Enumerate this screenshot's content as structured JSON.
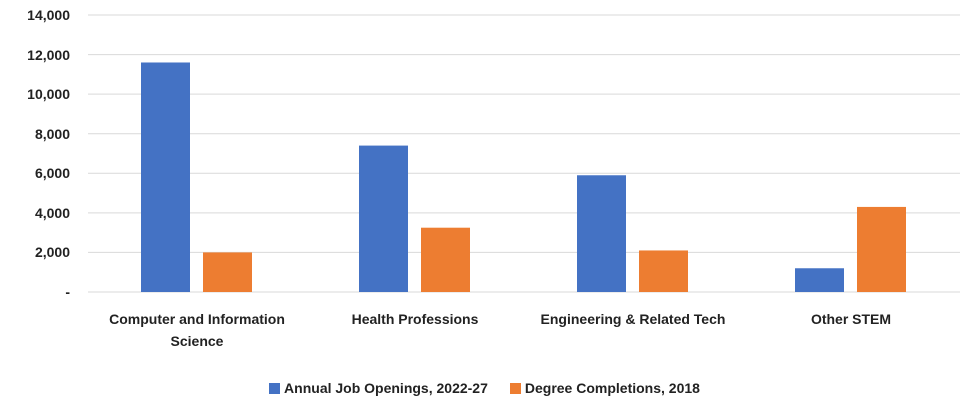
{
  "chart_data": {
    "type": "bar",
    "categories": [
      "Computer and Information Science",
      "Health Professions",
      "Engineering & Related Tech",
      "Other STEM"
    ],
    "series": [
      {
        "name": "Annual Job Openings, 2022-27",
        "color": "#4472c4",
        "values": [
          11600,
          7400,
          5900,
          1200
        ]
      },
      {
        "name": "Degree Completions, 2018",
        "color": "#ed7d31",
        "values": [
          2000,
          3250,
          2100,
          4300
        ]
      }
    ],
    "ylim": [
      0,
      14000
    ],
    "yticks": [
      {
        "value": 0,
        "label": "-"
      },
      {
        "value": 2000,
        "label": "2,000"
      },
      {
        "value": 4000,
        "label": "4,000"
      },
      {
        "value": 6000,
        "label": "6,000"
      },
      {
        "value": 8000,
        "label": "8,000"
      },
      {
        "value": 10000,
        "label": "10,000"
      },
      {
        "value": 12000,
        "label": "12,000"
      },
      {
        "value": 14000,
        "label": "14,000"
      }
    ],
    "grid": true,
    "legend": "bottom"
  }
}
